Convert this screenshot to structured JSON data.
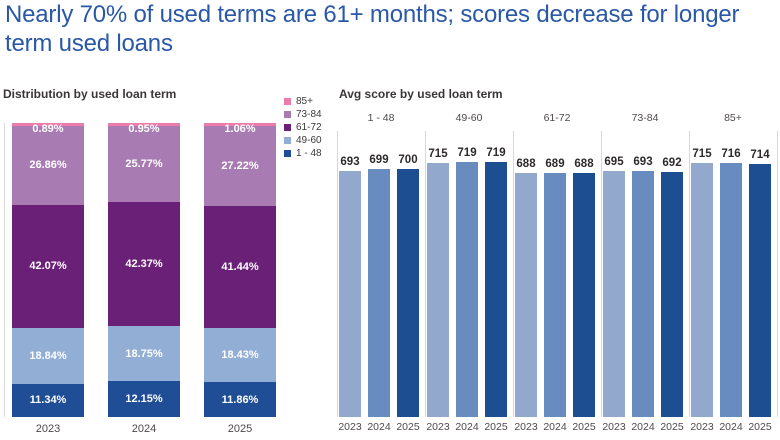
{
  "title": "Nearly 70% of used terms are 61+ months; scores decrease for longer term used loans",
  "colors": {
    "title": "#2a58a8",
    "term_85plus": "#ee7cab",
    "term_73_84": "#a87cb2",
    "term_61_72": "#6b2077",
    "term_49_60": "#93aed5",
    "term_1_48": "#1f4e96",
    "year_2023": "#92a9cd",
    "year_2024": "#688cbf",
    "year_2025": "#1e4e92",
    "axis_line": "#d8d8d8"
  },
  "chart_data": [
    {
      "id": "distribution",
      "type": "bar",
      "subtype": "stacked-100",
      "title": "Distribution by used loan term",
      "categories": [
        "2023",
        "2024",
        "2025"
      ],
      "value_suffix": "%",
      "ylim": [
        0,
        100
      ],
      "legend_position": "right",
      "axis_hidden": true,
      "series": [
        {
          "name": "85+",
          "color": "#ee7cab",
          "values": [
            0.89,
            0.95,
            1.06
          ]
        },
        {
          "name": "73-84",
          "color": "#a87cb2",
          "values": [
            26.86,
            25.77,
            27.22
          ]
        },
        {
          "name": "61-72",
          "color": "#6b2077",
          "values": [
            42.07,
            42.37,
            41.44
          ]
        },
        {
          "name": "49-60",
          "color": "#93aed5",
          "values": [
            18.84,
            18.75,
            18.43
          ]
        },
        {
          "name": "1 - 48",
          "color": "#1f4e96",
          "values": [
            11.34,
            12.15,
            11.86
          ]
        }
      ]
    },
    {
      "id": "avg-score",
      "type": "bar",
      "subtype": "grouped-panels",
      "title": "Avg score by used loan term",
      "groups": [
        "1 - 48",
        "49-60",
        "61-72",
        "73-84",
        "85+"
      ],
      "categories": [
        "2023",
        "2024",
        "2025"
      ],
      "category_colors": [
        "#92a9cd",
        "#688cbf",
        "#1e4e92"
      ],
      "values": [
        [
          693,
          699,
          700
        ],
        [
          715,
          719,
          719
        ],
        [
          688,
          689,
          688
        ],
        [
          695,
          693,
          692
        ],
        [
          715,
          716,
          714
        ]
      ],
      "ylim": [
        0,
        720
      ],
      "axis_hidden": true
    }
  ]
}
